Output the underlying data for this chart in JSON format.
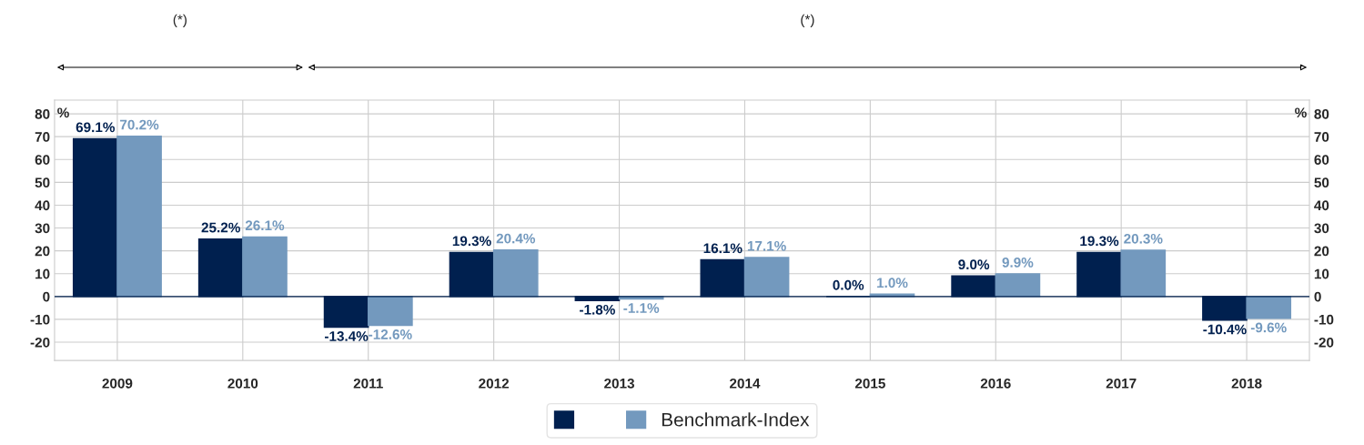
{
  "chart_data": {
    "type": "bar",
    "categories": [
      "2009",
      "2010",
      "2011",
      "2012",
      "2013",
      "2014",
      "2015",
      "2016",
      "2017",
      "2018"
    ],
    "series": [
      {
        "color": "#00204f",
        "values": [
          69.1,
          25.2,
          -13.4,
          19.3,
          -1.8,
          16.1,
          0.0,
          9.0,
          19.3,
          -10.4
        ],
        "value_labels": [
          "69.1%",
          "25.2%",
          "-13.4%",
          "19.3%",
          "-1.8%",
          "16.1%",
          "0.0%",
          "9.0%",
          "19.3%",
          "-10.4%"
        ]
      },
      {
        "name": "Benchmark-Index",
        "color": "#7399be",
        "values": [
          70.2,
          26.1,
          -12.6,
          20.4,
          -1.1,
          17.1,
          1.0,
          9.9,
          20.3,
          -9.6
        ],
        "value_labels": [
          "70.2%",
          "26.1%",
          "-12.6%",
          "20.4%",
          "-1.1%",
          "17.1%",
          "1.0%",
          "9.9%",
          "20.3%",
          "-9.6%"
        ]
      }
    ],
    "ylabel": "%",
    "y2label": "%",
    "ylim": [
      -28,
      86
    ],
    "yticks": [
      -20,
      -10,
      0,
      10,
      20,
      30,
      40,
      50,
      60,
      70,
      80
    ],
    "y2lim": [
      -28,
      86
    ],
    "y2ticks": [
      -20,
      -10,
      0,
      10,
      20,
      30,
      40,
      50,
      60,
      70,
      80
    ],
    "annotations": [
      "(*)",
      "(*)"
    ],
    "grid": true,
    "legend": "bottom"
  }
}
